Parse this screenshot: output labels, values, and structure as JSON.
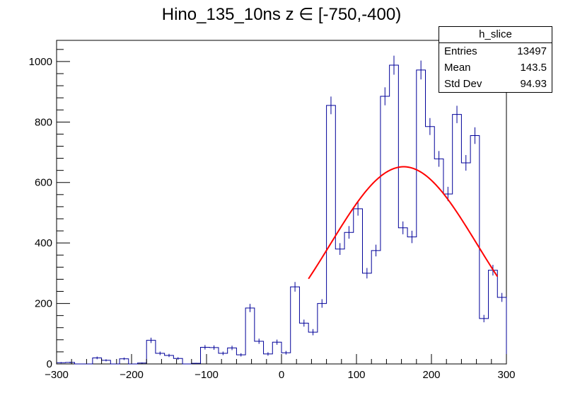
{
  "chart_data": {
    "type": "bar",
    "title": "Hino_135_10ns z  ∈ [-750,-400)",
    "xlabel": "",
    "ylabel": "",
    "xlim": [
      -300,
      300
    ],
    "ylim": [
      0,
      1070
    ],
    "xticks": [
      -300,
      -200,
      -100,
      0,
      100,
      200,
      300
    ],
    "xtick_labels": [
      "−300",
      "−200",
      "−100",
      "0",
      "100",
      "200",
      "300"
    ],
    "yticks": [
      0,
      200,
      400,
      600,
      800,
      1000
    ],
    "ytick_labels": [
      "0",
      "200",
      "400",
      "600",
      "800",
      "1000"
    ],
    "grid": false,
    "bin_width": 12,
    "series": [
      {
        "x": [
          -294,
          -282,
          -270,
          -258,
          -246,
          -234,
          -222,
          -210,
          -198,
          -186,
          -174,
          -162,
          -150,
          -138,
          -126,
          -114,
          -102,
          -90,
          -78,
          -66,
          -54,
          -42,
          -30,
          -18,
          -6,
          6,
          18,
          30,
          42,
          54,
          66,
          78,
          90,
          102,
          114,
          126,
          138,
          150,
          162,
          174,
          186,
          198,
          210,
          222,
          234,
          246,
          258,
          270,
          282,
          294
        ],
        "values": [
          4,
          5,
          0,
          0,
          20,
          12,
          0,
          17,
          0,
          3,
          78,
          35,
          28,
          18,
          0,
          2,
          55,
          54,
          35,
          53,
          30,
          185,
          75,
          33,
          72,
          37,
          255,
          135,
          105,
          200,
          855,
          380,
          435,
          513,
          300,
          375,
          885,
          988,
          450,
          420,
          972,
          785,
          678,
          562,
          825,
          665,
          755,
          150,
          310,
          220
        ]
      },
      {
        "x": [
          0
        ],
        "values": [
          0
        ]
      }
    ],
    "colors": {
      "histogram": "#000099",
      "fit": "#ff0000",
      "frame": "#000000"
    },
    "fit": {
      "type": "gaussian",
      "mean": 163,
      "sigma": 98,
      "amplitude": 652,
      "range": [
        36,
        288
      ]
    },
    "stats": {
      "name": "h_slice",
      "rows": [
        {
          "label": "Entries",
          "value": "13497"
        },
        {
          "label": "Mean",
          "value": "143.5"
        },
        {
          "label": "Std Dev",
          "value": "94.93"
        }
      ]
    }
  }
}
